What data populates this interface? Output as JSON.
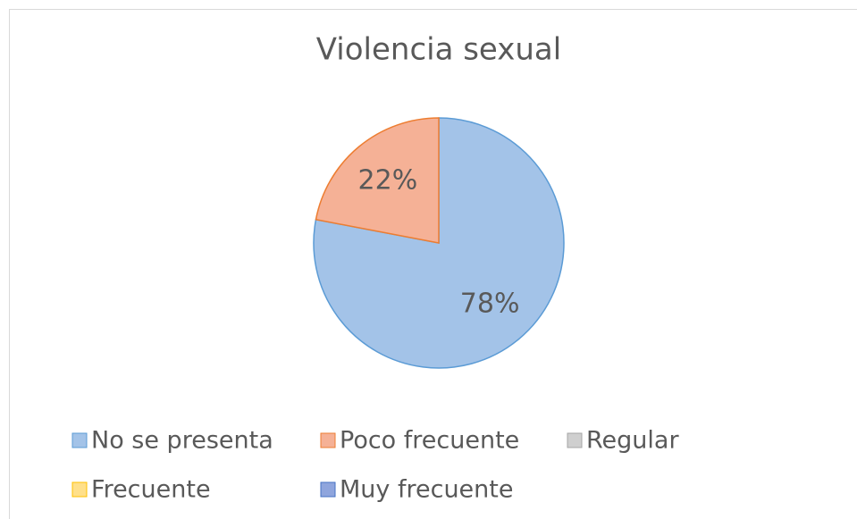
{
  "chart_data": {
    "type": "pie",
    "title": "Violencia sexual",
    "categories": [
      "No se presenta",
      "Poco frecuente",
      "Regular",
      "Frecuente",
      "Muy frecuente"
    ],
    "values": [
      78,
      22,
      0,
      0,
      0
    ],
    "value_labels": [
      "78%",
      "22%",
      null,
      null,
      null
    ],
    "colors": [
      "#a3c3e8",
      "#f5b196",
      "#cfcfcf",
      "#ffe08a",
      "#8fa5dd"
    ],
    "edge_colors": [
      "#5b9bd5",
      "#ed7d31",
      "#a5a5a5",
      "#ffc000",
      "#4472c4"
    ],
    "legend": "bottom"
  }
}
